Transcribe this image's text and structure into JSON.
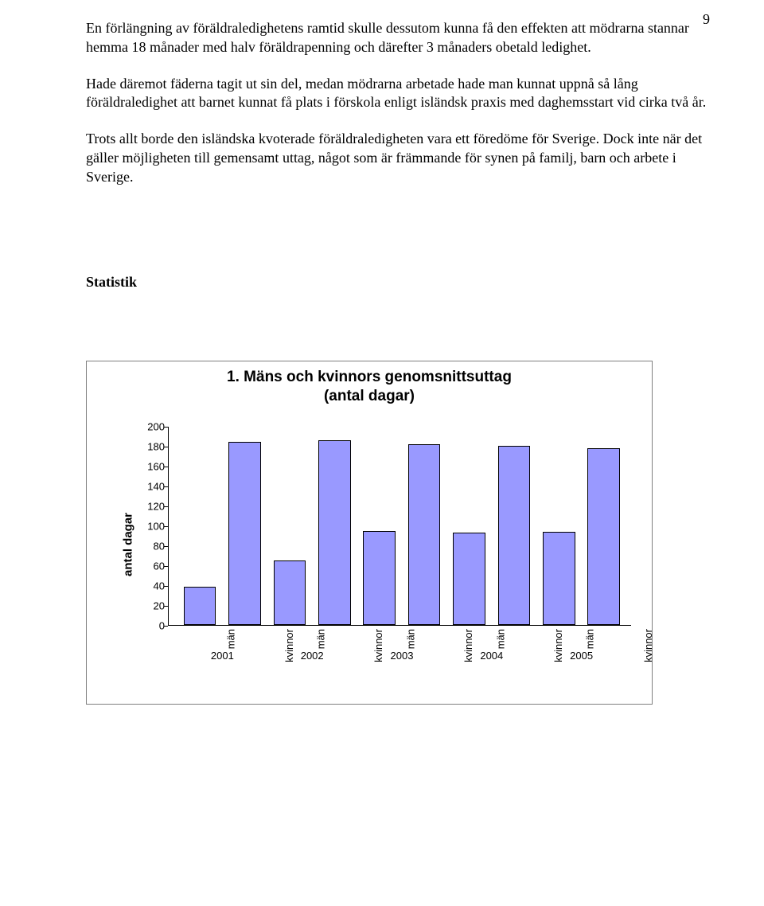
{
  "page_number": "9",
  "paragraphs": [
    "En förlängning av föräldraledighetens ramtid skulle dessutom kunna få den effekten att mödrarna stannar hemma 18 månader med halv föräldrapenning och därefter 3 månaders obetald ledighet.",
    "Hade däremot fäderna tagit ut sin del, medan mödrarna arbetade hade man kunnat uppnå så lång föräldraledighet att barnet kunnat få plats i förskola enligt isländsk praxis med daghemsstart vid cirka två år.",
    "Trots allt borde den isländska kvoterade föräldraledigheten vara ett föredöme för Sverige. Dock inte när det gäller möjligheten till gemensamt uttag, något som är främmande för synen på familj, barn och arbete i Sverige."
  ],
  "section_heading": "Statistik",
  "chart": {
    "type": "bar",
    "title": "1. Mäns och kvinnors genomsnittsuttag\n(antal dagar)",
    "ylabel": "antal dagar",
    "ylim_max": 200,
    "ytick_step": 20,
    "bar_color": "#9999ff",
    "bar_border": "#000000",
    "background_color": "#ffffff",
    "frame_border_color": "#808080",
    "groups": [
      {
        "label": "2001",
        "bars": [
          {
            "sublabel": "män",
            "value": 39
          },
          {
            "sublabel": "kvinnor",
            "value": 184
          }
        ]
      },
      {
        "label": "2002",
        "bars": [
          {
            "sublabel": "män",
            "value": 65
          },
          {
            "sublabel": "kvinnor",
            "value": 186
          }
        ]
      },
      {
        "label": "2003",
        "bars": [
          {
            "sublabel": "män",
            "value": 95
          },
          {
            "sublabel": "kvinnor",
            "value": 182
          }
        ]
      },
      {
        "label": "2004",
        "bars": [
          {
            "sublabel": "män",
            "value": 93
          },
          {
            "sublabel": "kvinnor",
            "value": 180
          }
        ]
      },
      {
        "label": "2005",
        "bars": [
          {
            "sublabel": "män",
            "value": 94
          },
          {
            "sublabel": "kvinnor",
            "value": 178
          }
        ]
      }
    ]
  }
}
